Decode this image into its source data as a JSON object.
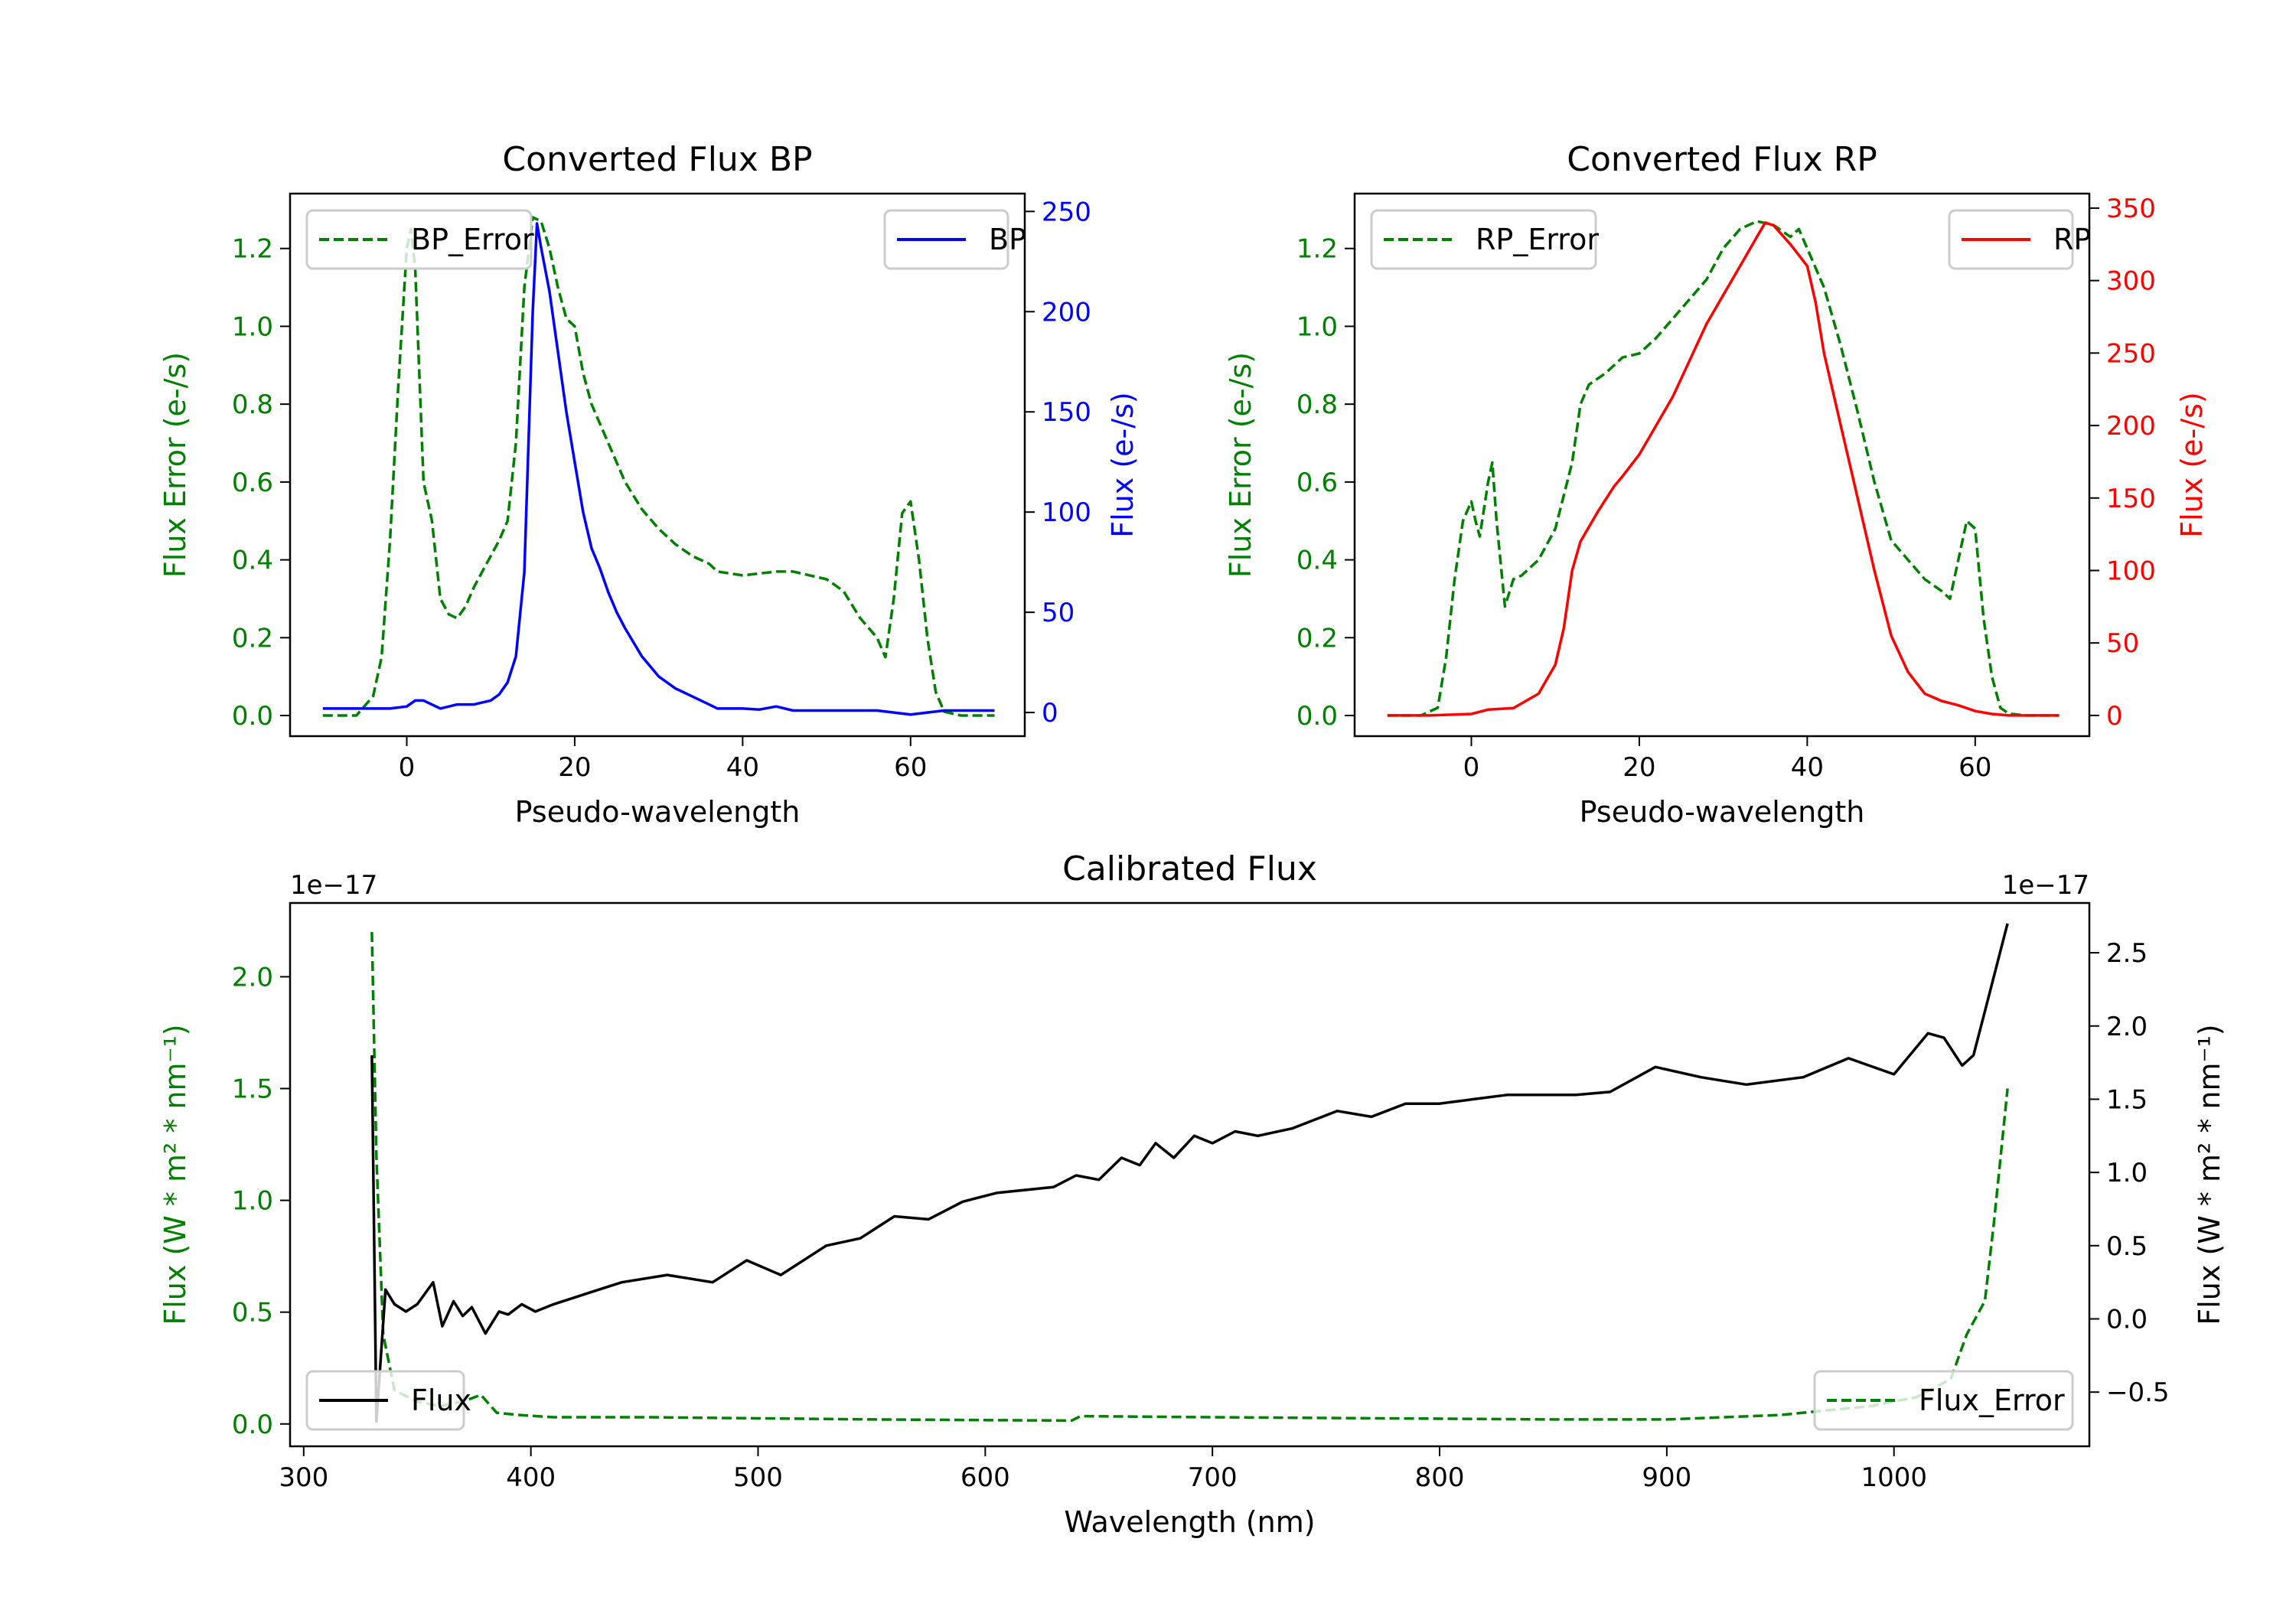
{
  "chart_data": [
    {
      "type": "line",
      "title": "Converted Flux BP",
      "xlabel": "Pseudo-wavelength",
      "ylabel_left": "Flux Error (e-/s)",
      "ylabel_right": "Flux (e-/s)",
      "left_color": "#008000",
      "right_color": "#0000ff",
      "xlim": [
        -13.9,
        73.6
      ],
      "ylim_left": [
        -0.053,
        1.341
      ],
      "ylim_right": [
        -11.8,
        258.9
      ],
      "xticks": [
        0,
        20,
        40,
        60
      ],
      "xtick_labels": [
        "0",
        "20",
        "40",
        "60"
      ],
      "yticks_left": [
        0,
        0.2,
        0.4,
        0.6,
        0.8,
        1.0,
        1.2
      ],
      "ytick_labels_left": [
        "0.0",
        "0.2",
        "0.4",
        "0.6",
        "0.8",
        "1.0",
        "1.2"
      ],
      "yticks_right": [
        0,
        50,
        100,
        150,
        200,
        250
      ],
      "ytick_labels_right": [
        "0",
        "50",
        "100",
        "150",
        "200",
        "250"
      ],
      "offset_left": "",
      "offset_right": "",
      "series": [
        {
          "name": "BP_Error",
          "axis": "left",
          "style": "dashed",
          "color": "#008000",
          "legend": "upper-left",
          "x": [
            -10,
            -6,
            -4,
            -3,
            -2,
            -1,
            0,
            0.5,
            1,
            2,
            3,
            4,
            5,
            6,
            7,
            8,
            9,
            11,
            12,
            13,
            14,
            15,
            16,
            17,
            18,
            19,
            20,
            21,
            22,
            24,
            25,
            26,
            28,
            30,
            32,
            34,
            36,
            37,
            40,
            44,
            46,
            48,
            50,
            52,
            54,
            56,
            57,
            58,
            59,
            60,
            61,
            62,
            63,
            64,
            66,
            70
          ],
          "y": [
            0,
            0,
            0.05,
            0.15,
            0.45,
            0.85,
            1.2,
            1.25,
            1.15,
            0.6,
            0.5,
            0.3,
            0.26,
            0.25,
            0.28,
            0.33,
            0.37,
            0.45,
            0.5,
            0.7,
            1.1,
            1.28,
            1.27,
            1.2,
            1.1,
            1.02,
            1.0,
            0.88,
            0.8,
            0.7,
            0.65,
            0.6,
            0.53,
            0.48,
            0.44,
            0.41,
            0.39,
            0.37,
            0.36,
            0.37,
            0.37,
            0.36,
            0.35,
            0.32,
            0.25,
            0.2,
            0.15,
            0.3,
            0.52,
            0.55,
            0.4,
            0.2,
            0.06,
            0.01,
            0,
            0
          ]
        },
        {
          "name": "BP",
          "axis": "right",
          "style": "solid",
          "color": "#0000ff",
          "legend": "upper-right",
          "x": [
            -10,
            -5,
            -2,
            0,
            1,
            2,
            4,
            6,
            8,
            10,
            11,
            12,
            13,
            14,
            15,
            15.5,
            16,
            17,
            18,
            19,
            20,
            21,
            22,
            23,
            24,
            25,
            26,
            27,
            28,
            30,
            32,
            34,
            36,
            37,
            40,
            42,
            44,
            46,
            50,
            54,
            56,
            58,
            60,
            64,
            70
          ],
          "y": [
            2,
            2,
            2,
            3,
            6,
            6,
            2,
            4,
            4,
            6,
            9,
            15,
            28,
            70,
            200,
            244,
            232,
            210,
            180,
            150,
            125,
            100,
            82,
            72,
            60,
            50,
            42,
            35,
            28,
            18,
            12,
            8,
            4,
            2,
            2,
            1.5,
            3,
            1,
            1,
            1,
            1,
            0,
            -1,
            1,
            1
          ]
        }
      ]
    },
    {
      "type": "line",
      "title": "Converted Flux RP",
      "xlabel": "Pseudo-wavelength",
      "ylabel_left": "Flux Error (e-/s)",
      "ylabel_right": "Flux (e-/s)",
      "left_color": "#008000",
      "right_color": "#ff0000",
      "xlim": [
        -13.9,
        73.6
      ],
      "ylim_left": [
        -0.053,
        1.341
      ],
      "ylim_right": [
        -14.3,
        360
      ],
      "xticks": [
        0,
        20,
        40,
        60
      ],
      "xtick_labels": [
        "0",
        "20",
        "40",
        "60"
      ],
      "yticks_left": [
        0,
        0.2,
        0.4,
        0.6,
        0.8,
        1.0,
        1.2
      ],
      "ytick_labels_left": [
        "0.0",
        "0.2",
        "0.4",
        "0.6",
        "0.8",
        "1.0",
        "1.2"
      ],
      "yticks_right": [
        0,
        50,
        100,
        150,
        200,
        250,
        300,
        350
      ],
      "ytick_labels_right": [
        "0",
        "50",
        "100",
        "150",
        "200",
        "250",
        "300",
        "350"
      ],
      "offset_left": "",
      "offset_right": "",
      "series": [
        {
          "name": "RP_Error",
          "axis": "left",
          "style": "dashed",
          "color": "#008000",
          "legend": "upper-left",
          "x": [
            -10,
            -6,
            -4,
            -3,
            -2,
            -1,
            0,
            0.5,
            1,
            2,
            2.5,
            3,
            4,
            5,
            6,
            8,
            10,
            12,
            13,
            14,
            16,
            18,
            20,
            22,
            24,
            26,
            28,
            30,
            32,
            34,
            36,
            38,
            39,
            40,
            42,
            44,
            46,
            48,
            50,
            52,
            54,
            56,
            57,
            58,
            59,
            60,
            61,
            62,
            63,
            64,
            66,
            70
          ],
          "y": [
            0,
            0,
            0.02,
            0.15,
            0.35,
            0.5,
            0.55,
            0.5,
            0.46,
            0.6,
            0.65,
            0.5,
            0.28,
            0.35,
            0.36,
            0.4,
            0.48,
            0.65,
            0.8,
            0.85,
            0.88,
            0.92,
            0.93,
            0.97,
            1.02,
            1.07,
            1.12,
            1.2,
            1.25,
            1.27,
            1.26,
            1.23,
            1.25,
            1.2,
            1.1,
            0.95,
            0.78,
            0.6,
            0.45,
            0.4,
            0.35,
            0.32,
            0.3,
            0.4,
            0.5,
            0.48,
            0.25,
            0.1,
            0.02,
            0.005,
            0,
            0
          ]
        },
        {
          "name": "RP",
          "axis": "right",
          "style": "solid",
          "color": "#ff0000",
          "legend": "upper-right",
          "x": [
            -10,
            -5,
            0,
            2,
            5,
            8,
            10,
            11,
            12,
            13,
            15,
            17,
            18,
            20,
            22,
            24,
            26,
            28,
            30,
            32,
            34,
            35,
            36,
            38,
            40,
            41,
            42,
            44,
            46,
            48,
            50,
            52,
            54,
            56,
            58,
            60,
            62,
            64,
            70
          ],
          "y": [
            0,
            0,
            1,
            4,
            5,
            15,
            35,
            60,
            100,
            120,
            140,
            158,
            165,
            180,
            200,
            220,
            245,
            270,
            290,
            310,
            330,
            340,
            338,
            325,
            310,
            285,
            250,
            200,
            150,
            100,
            55,
            30,
            15,
            10,
            7,
            3,
            1,
            0,
            0
          ]
        }
      ]
    },
    {
      "type": "line",
      "title": "Calibrated Flux",
      "xlabel": "Wavelength (nm)",
      "ylabel_left": "Flux (W * m² * nm⁻¹)",
      "ylabel_right": "Flux (W * m² * nm⁻¹)",
      "left_color": "#008000",
      "right_color": "#000000",
      "xlim": [
        294,
        1086
      ],
      "ylim_left": [
        -0.1,
        2.33
      ],
      "ylim_right": [
        -0.87,
        2.84
      ],
      "xticks": [
        300,
        400,
        500,
        600,
        700,
        800,
        900,
        1000
      ],
      "xtick_labels": [
        "300",
        "400",
        "500",
        "600",
        "700",
        "800",
        "900",
        "1000"
      ],
      "yticks_left": [
        0,
        0.5,
        1.0,
        1.5,
        2.0
      ],
      "ytick_labels_left": [
        "0.0",
        "0.5",
        "1.0",
        "1.5",
        "2.0"
      ],
      "yticks_right": [
        -0.5,
        0,
        0.5,
        1.0,
        1.5,
        2.0,
        2.5
      ],
      "ytick_labels_right": [
        "−0.5",
        "0.0",
        "0.5",
        "1.0",
        "1.5",
        "2.0",
        "2.5"
      ],
      "offset_left": "1e−17",
      "offset_right": "1e−17",
      "series": [
        {
          "name": "Flux_Error",
          "axis": "left",
          "style": "dashed",
          "color": "#008000",
          "legend": "lower-right",
          "x": [
            330,
            332,
            335,
            340,
            350,
            360,
            370,
            378,
            385,
            395,
            410,
            450,
            550,
            638,
            642,
            700,
            850,
            900,
            950,
            990,
            1010,
            1025,
            1032,
            1040,
            1044,
            1050
          ],
          "y": [
            2.2,
            1.2,
            0.4,
            0.15,
            0.1,
            0.08,
            0.1,
            0.13,
            0.05,
            0.04,
            0.03,
            0.03,
            0.02,
            0.015,
            0.035,
            0.03,
            0.02,
            0.02,
            0.04,
            0.08,
            0.12,
            0.2,
            0.4,
            0.55,
            0.9,
            1.5
          ]
        },
        {
          "name": "Flux",
          "axis": "right",
          "style": "solid",
          "color": "#000000",
          "legend": "lower-left",
          "x": [
            330,
            332,
            336,
            340,
            345,
            350,
            357,
            361,
            366,
            370,
            374,
            380,
            386,
            390,
            396,
            402,
            410,
            420,
            430,
            440,
            460,
            480,
            495,
            510,
            530,
            545,
            560,
            575,
            590,
            605,
            630,
            640,
            650,
            660,
            668,
            675,
            683,
            692,
            700,
            710,
            720,
            735,
            755,
            770,
            785,
            800,
            815,
            830,
            860,
            875,
            895,
            915,
            935,
            960,
            980,
            1000,
            1015,
            1022,
            1030,
            1035,
            1040,
            1050
          ],
          "y": [
            1.8,
            -0.7,
            0.2,
            0.1,
            0.05,
            0.1,
            0.25,
            -0.05,
            0.12,
            0.02,
            0.08,
            -0.1,
            0.05,
            0.03,
            0.1,
            0.05,
            0.1,
            0.15,
            0.2,
            0.25,
            0.3,
            0.25,
            0.4,
            0.3,
            0.5,
            0.55,
            0.7,
            0.68,
            0.8,
            0.86,
            0.9,
            0.98,
            0.95,
            1.1,
            1.05,
            1.2,
            1.1,
            1.25,
            1.2,
            1.28,
            1.25,
            1.3,
            1.42,
            1.38,
            1.47,
            1.47,
            1.5,
            1.53,
            1.53,
            1.55,
            1.72,
            1.65,
            1.6,
            1.65,
            1.78,
            1.67,
            1.95,
            1.92,
            1.73,
            1.8,
            2.1,
            2.7
          ]
        }
      ]
    }
  ]
}
